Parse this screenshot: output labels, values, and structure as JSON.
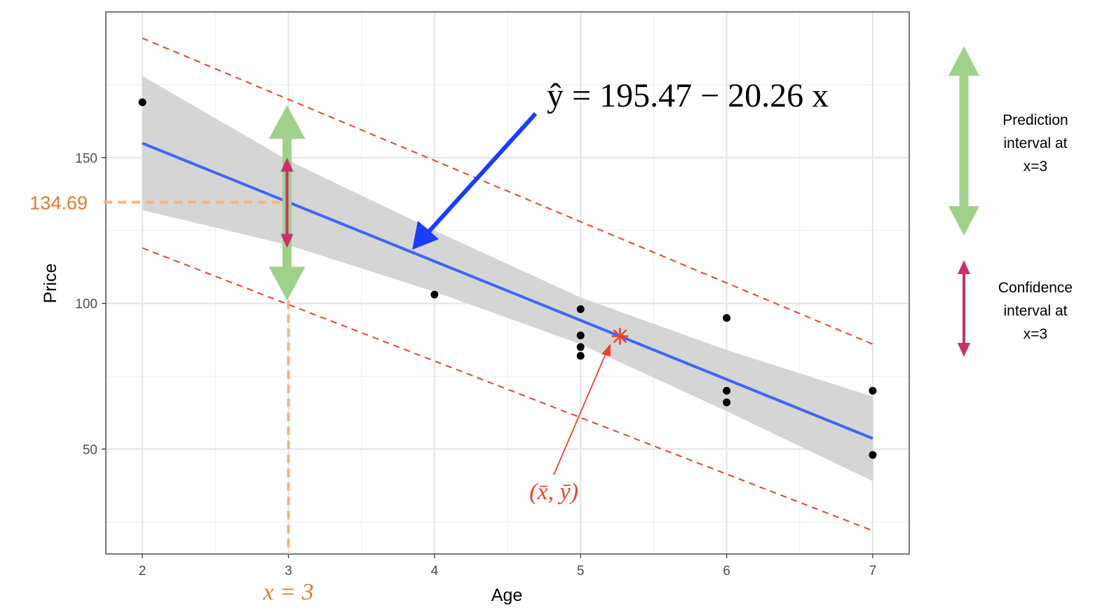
{
  "chart_data": {
    "type": "scatter",
    "xlabel": "Age",
    "ylabel": "Price",
    "xlim": [
      1.75,
      7.25
    ],
    "ylim": [
      14,
      200
    ],
    "x_ticks": [
      2,
      3,
      4,
      5,
      6,
      7
    ],
    "y_ticks": [
      50,
      100,
      150
    ],
    "grid": true,
    "points": [
      {
        "x": 2,
        "y": 169
      },
      {
        "x": 4,
        "y": 103
      },
      {
        "x": 5,
        "y": 98
      },
      {
        "x": 5,
        "y": 89
      },
      {
        "x": 5,
        "y": 85
      },
      {
        "x": 5,
        "y": 82
      },
      {
        "x": 6,
        "y": 95
      },
      {
        "x": 6,
        "y": 70
      },
      {
        "x": 6,
        "y": 66
      },
      {
        "x": 7,
        "y": 70
      },
      {
        "x": 7,
        "y": 48
      }
    ],
    "regression": {
      "intercept": 195.47,
      "slope": -20.26,
      "equation_text": "ŷ = 195.47 − 20.26 x"
    },
    "confidence_band": [
      {
        "x": 2,
        "lower": 132,
        "upper": 178
      },
      {
        "x": 3,
        "lower": 120,
        "upper": 149
      },
      {
        "x": 4,
        "lower": 104,
        "upper": 125
      },
      {
        "x": 5,
        "lower": 86,
        "upper": 102
      },
      {
        "x": 6,
        "lower": 63,
        "upper": 84
      },
      {
        "x": 7,
        "lower": 39,
        "upper": 68
      }
    ],
    "prediction_band": [
      {
        "x": 2,
        "lower": 119,
        "upper": 191
      },
      {
        "x": 7,
        "lower": 22,
        "upper": 86
      }
    ],
    "mean_point": {
      "x": 5.27,
      "y": 88.7,
      "label": "(x̄, ȳ)"
    },
    "highlight_x": {
      "x": 3,
      "y": 134.69,
      "x_label": "x = 3",
      "y_label": "134.69"
    },
    "interval_at_x3": {
      "prediction": [
        101,
        168
      ],
      "confidence": [
        119,
        150
      ]
    },
    "legend": [
      {
        "label_lines": [
          "Prediction",
          "interval at",
          "x=3"
        ]
      },
      {
        "label_lines": [
          "Confidence",
          "interval at",
          "x=3"
        ]
      }
    ],
    "colors": {
      "fit_line": "#4166f5",
      "band": "#d3d3d3",
      "prediction_lines": "#e8432e",
      "prediction_arrow": "#9fd18b",
      "confidence_arrow": "#c8316e",
      "highlight": "#e07b2f",
      "highlight_dash": "#f4b383",
      "equation_arrow": "#1a3cff",
      "mean_marker": "#e8432e",
      "points": "#000000"
    }
  }
}
